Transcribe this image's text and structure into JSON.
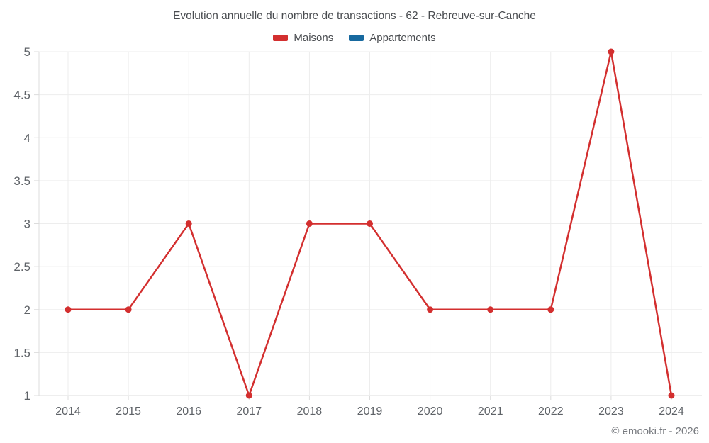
{
  "chart_data": {
    "type": "line",
    "title": "Evolution annuelle du nombre de transactions - 62 - Rebreuve-sur-Canche",
    "categories": [
      "2014",
      "2015",
      "2016",
      "2017",
      "2018",
      "2019",
      "2020",
      "2021",
      "2022",
      "2023",
      "2024"
    ],
    "series": [
      {
        "name": "Maisons",
        "color": "#d32f2f",
        "values": [
          2,
          2,
          3,
          1,
          3,
          3,
          2,
          2,
          2,
          5,
          1
        ]
      },
      {
        "name": "Appartements",
        "color": "#17699f",
        "values": []
      }
    ],
    "xlabel": "",
    "ylabel": "",
    "ylim": [
      1,
      5
    ],
    "ytick_step": 0.5,
    "grid": true,
    "legend_position": "top",
    "footer": "© emooki.fr - 2026"
  }
}
